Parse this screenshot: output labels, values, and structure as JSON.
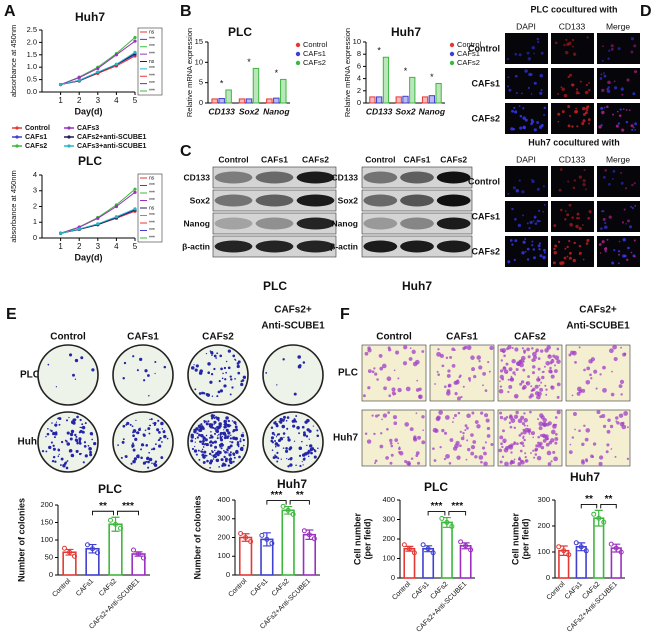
{
  "panels": {
    "A": "A",
    "B": "B",
    "C": "C",
    "D": "D",
    "E": "E",
    "F": "F"
  },
  "blots": [
    {
      "title": "PLC",
      "columns": [
        "Control",
        "CAFs1",
        "CAFs2"
      ],
      "rows": [
        "CD133",
        "Sox2",
        "Nanog",
        "β-actin"
      ]
    },
    {
      "title": "Huh7",
      "columns": [
        "Control",
        "CAFs1",
        "CAFs2"
      ],
      "rows": [
        "CD133",
        "Sox2",
        "Nanog",
        "β-actin"
      ]
    }
  ],
  "if_images": [
    {
      "title": "PLC cocultured with",
      "columns": [
        "DAPI",
        "CD133",
        "Merge"
      ],
      "rows": [
        "Control",
        "CAFs1",
        "CAFs2"
      ]
    },
    {
      "title": "Huh7 cocultured with",
      "columns": [
        "DAPI",
        "CD133",
        "Merge"
      ],
      "rows": [
        "Control",
        "CAFs1",
        "CAFs2"
      ]
    }
  ],
  "colony_assay": {
    "columns": [
      "Control",
      "CAFs1",
      "CAFs2",
      [
        "CAFs2+",
        "Anti-SCUBE1"
      ]
    ],
    "rows": [
      "PLC",
      "Huh7"
    ]
  },
  "transwell_assay": {
    "columns": [
      "Control",
      "CAFs1",
      "CAFs2",
      [
        "CAFs2+",
        "Anti-SCUBE1"
      ]
    ],
    "rows": [
      "PLC",
      "Huh7"
    ]
  },
  "chart_data": [
    {
      "type": "line",
      "title": "Huh7",
      "x_label": "Day(d)",
      "y_label": "absorbance at 450nm",
      "x": [
        1,
        2,
        3,
        4,
        5
      ],
      "xlim": [
        0,
        5
      ],
      "xticks": [
        1,
        2,
        3,
        4,
        5
      ],
      "ylim": [
        0,
        2.5
      ],
      "yticks": [
        {
          "value": 0,
          "label": "0.0"
        },
        0.5,
        {
          "value": 1,
          "label": "1.0"
        },
        1.5,
        {
          "value": 2,
          "label": "2.0"
        },
        2.5
      ],
      "series": [
        {
          "name": "Control",
          "color": "#e53935",
          "values": [
            0.3,
            0.45,
            0.75,
            1.05,
            1.45
          ]
        },
        {
          "name": "CAFs1",
          "color": "#3f3fd0",
          "values": [
            0.3,
            0.47,
            0.8,
            1.1,
            1.5
          ]
        },
        {
          "name": "CAFs2",
          "color": "#3cb83c",
          "values": [
            0.3,
            0.6,
            1.0,
            1.55,
            2.2
          ]
        },
        {
          "name": "CAFs3",
          "color": "#9b30c0",
          "values": [
            0.3,
            0.58,
            0.95,
            1.5,
            2.05
          ]
        },
        {
          "name": "CAFs2+anti-SCUBE1",
          "color": "#1f1f55",
          "values": [
            0.3,
            0.45,
            0.78,
            1.1,
            1.55
          ]
        },
        {
          "name": "CAFs3+anti-SCUBE1",
          "color": "#27b5c8",
          "values": [
            0.3,
            0.47,
            0.8,
            1.12,
            1.6
          ]
        }
      ],
      "significance": [
        "ns",
        "***",
        "***",
        "***",
        "ns",
        "***",
        "***",
        "***",
        "***"
      ]
    },
    {
      "type": "line",
      "title": "PLC",
      "x_label": "Day(d)",
      "y_label": "absorbance at 450nm",
      "x": [
        1,
        2,
        3,
        4,
        5
      ],
      "xlim": [
        0,
        5
      ],
      "xticks": [
        1,
        2,
        3,
        4,
        5
      ],
      "ylim": [
        0,
        4
      ],
      "yticks": [
        0,
        1,
        2,
        3,
        4
      ],
      "series": [
        {
          "color": "#e53935",
          "values": [
            0.3,
            0.55,
            0.85,
            1.25,
            1.7
          ]
        },
        {
          "color": "#3f3fd0",
          "values": [
            0.3,
            0.55,
            0.85,
            1.3,
            1.75
          ]
        },
        {
          "color": "#3cb83c",
          "values": [
            0.3,
            0.7,
            1.3,
            2.1,
            3.1
          ]
        },
        {
          "color": "#9b30c0",
          "values": [
            0.3,
            0.68,
            1.25,
            2.0,
            2.9
          ]
        },
        {
          "color": "#1f1f55",
          "values": [
            0.3,
            0.55,
            0.85,
            1.3,
            1.8
          ]
        },
        {
          "color": "#27b5c8",
          "values": [
            0.3,
            0.57,
            0.9,
            1.35,
            1.85
          ]
        }
      ],
      "significance": [
        "ns",
        "***",
        "***",
        "***",
        "ns",
        "***",
        "***",
        "***",
        "***"
      ]
    },
    {
      "type": "grouped_bar",
      "title": "PLC",
      "y_label": "Relative mRNA expression",
      "categories": [
        "CD133",
        "Sox2",
        "Nanog"
      ],
      "ylim": [
        0,
        15
      ],
      "yticks": [
        0,
        5,
        10,
        15
      ],
      "series": [
        {
          "name": "Control",
          "color": "#e53935",
          "values": [
            1,
            1,
            1
          ]
        },
        {
          "name": "CAFs1",
          "color": "#3f3fd0",
          "values": [
            1.1,
            1.0,
            1.2
          ]
        },
        {
          "name": "CAFs2",
          "color": "#3cb83c",
          "values": [
            3.2,
            8.5,
            5.8
          ]
        }
      ],
      "annotations": [
        "*",
        "*",
        "*"
      ]
    },
    {
      "type": "grouped_bar",
      "title": "Huh7",
      "y_label": "Relative mRNA expression",
      "categories": [
        "CD133",
        "Sox2",
        "Nanog"
      ],
      "ylim": [
        0,
        10
      ],
      "yticks": [
        0,
        2,
        4,
        6,
        8,
        10
      ],
      "series": [
        {
          "name": "Control",
          "color": "#e53935",
          "values": [
            1,
            1,
            1
          ]
        },
        {
          "name": "CAFs1",
          "color": "#3f3fd0",
          "values": [
            1.0,
            1.1,
            1.2
          ]
        },
        {
          "name": "CAFs2",
          "color": "#3cb83c",
          "values": [
            7.5,
            4.2,
            3.2
          ]
        }
      ],
      "annotations": [
        "*",
        "*",
        "*"
      ]
    },
    {
      "type": "bar",
      "title": "PLC",
      "y_label": [
        "Number of colonies"
      ],
      "categories": [
        "Control",
        "CAFs1",
        "CAFs2",
        "CAFs2+Anti-SCUBE1"
      ],
      "values": [
        65,
        75,
        145,
        60
      ],
      "errors": [
        8,
        12,
        20,
        6
      ],
      "colors": [
        "#e53935",
        "#3f3fd0",
        "#3cb83c",
        "#9b30c0"
      ],
      "ylim": [
        0,
        200
      ],
      "yticks": [
        0,
        50,
        100,
        150,
        200
      ],
      "annotations": [
        "**",
        "***"
      ]
    },
    {
      "type": "bar",
      "title": "Huh7",
      "y_label": [
        "Number of colonies"
      ],
      "categories": [
        "Control",
        "CAFs1",
        "CAFs2",
        "CAFs2+Anti-SCUBE1"
      ],
      "values": [
        200,
        190,
        345,
        215
      ],
      "errors": [
        20,
        35,
        20,
        25
      ],
      "colors": [
        "#e53935",
        "#3f3fd0",
        "#3cb83c",
        "#9b30c0"
      ],
      "ylim": [
        0,
        400
      ],
      "yticks": [
        0,
        100,
        200,
        300,
        400
      ],
      "annotations": [
        "***",
        "**"
      ]
    },
    {
      "type": "bar",
      "title": "PLC",
      "y_label": [
        "Cell number",
        "(per field)"
      ],
      "categories": [
        "Control",
        "CAFs1",
        "CAFs2",
        "CAFs2+Anti-SCUBE1"
      ],
      "values": [
        150,
        150,
        285,
        165
      ],
      "errors": [
        12,
        15,
        25,
        15
      ],
      "colors": [
        "#e53935",
        "#3f3fd0",
        "#3cb83c",
        "#9b30c0"
      ],
      "ylim": [
        0,
        400
      ],
      "yticks": [
        0,
        100,
        200,
        300,
        400
      ],
      "annotations": [
        "***",
        "***"
      ]
    },
    {
      "type": "bar",
      "title": "Huh7",
      "y_label": [
        "Cell number",
        "(per field)"
      ],
      "categories": [
        "Control",
        "CAFs1",
        "CAFs2",
        "CAFs2+Anti-SCUBE1"
      ],
      "values": [
        105,
        120,
        230,
        115
      ],
      "errors": [
        18,
        15,
        30,
        15
      ],
      "colors": [
        "#e53935",
        "#3f3fd0",
        "#3cb83c",
        "#9b30c0"
      ],
      "ylim": [
        0,
        300
      ],
      "yticks": [
        0,
        100,
        200,
        300
      ],
      "annotations": [
        "**",
        "**"
      ]
    }
  ]
}
